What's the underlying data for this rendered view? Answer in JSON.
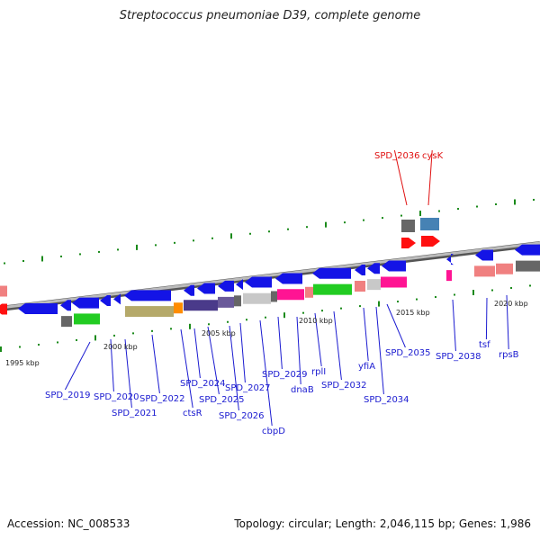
{
  "title": "Streptococcus pneumoniae D39, complete genome",
  "footer": {
    "accession": "Accession: NC_008533",
    "summary": "Topology: circular; Length: 2,046,115 bp; Genes: 1,986"
  },
  "colors": {
    "gene_blue": "#1414e6",
    "label_blue": "#1a1ad0",
    "label_red": "#e01010",
    "backbone": "#8a8a8a",
    "tick_green": "#1a8a1a"
  },
  "ticks": [
    {
      "label": "1995 kbp"
    },
    {
      "label": "2000 kbp"
    },
    {
      "label": "2005 kbp"
    },
    {
      "label": "2010 kbp"
    },
    {
      "label": "2015 kbp"
    },
    {
      "label": "2020 kbp"
    }
  ],
  "gene_labels": [
    {
      "text": "SPD_2036",
      "color": "red"
    },
    {
      "text": "cysK",
      "color": "red"
    },
    {
      "text": "SPD_2019",
      "color": "blue"
    },
    {
      "text": "SPD_2020",
      "color": "blue"
    },
    {
      "text": "SPD_2021",
      "color": "blue"
    },
    {
      "text": "SPD_2022",
      "color": "blue"
    },
    {
      "text": "ctsR",
      "color": "blue"
    },
    {
      "text": "SPD_2024",
      "color": "blue"
    },
    {
      "text": "SPD_2025",
      "color": "blue"
    },
    {
      "text": "SPD_2026",
      "color": "blue"
    },
    {
      "text": "SPD_2027",
      "color": "blue"
    },
    {
      "text": "cbpD",
      "color": "blue"
    },
    {
      "text": "SPD_2029",
      "color": "blue"
    },
    {
      "text": "dnaB",
      "color": "blue"
    },
    {
      "text": "rplI",
      "color": "blue"
    },
    {
      "text": "SPD_2032",
      "color": "blue"
    },
    {
      "text": "yfiA",
      "color": "blue"
    },
    {
      "text": "SPD_2034",
      "color": "blue"
    },
    {
      "text": "SPD_2035",
      "color": "blue"
    },
    {
      "text": "SPD_2038",
      "color": "blue"
    },
    {
      "text": "tsf",
      "color": "blue"
    },
    {
      "text": "rpsB",
      "color": "blue"
    }
  ]
}
